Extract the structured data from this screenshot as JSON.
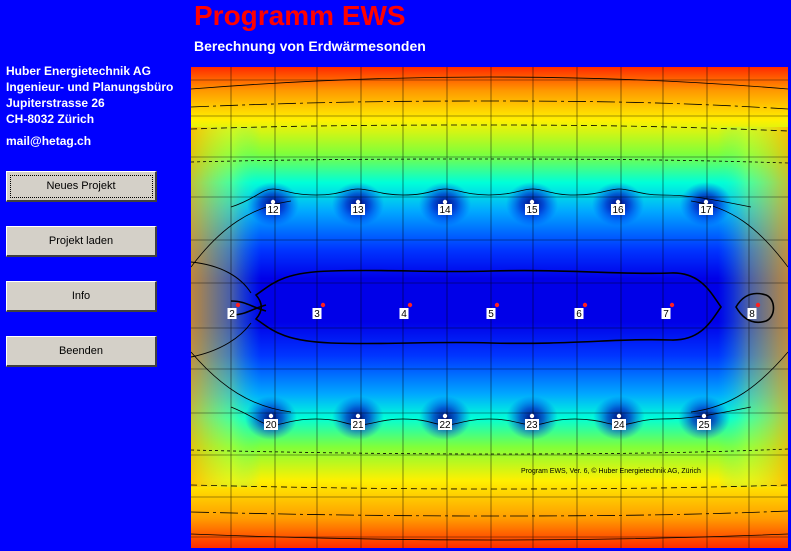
{
  "header": {
    "title": "Programm EWS",
    "subtitle": "Berechnung von Erdwärmesonden"
  },
  "company": {
    "name": "Huber Energietechnik AG",
    "department": "Ingenieur- und Planungsbüro",
    "street": "Jupiterstrasse 26",
    "city": "CH-8032 Zürich",
    "email": "mail@hetag.ch"
  },
  "menu": {
    "new_project": "Neues Projekt",
    "load_project": "Projekt laden",
    "info": "Info",
    "exit": "Beenden"
  },
  "plot": {
    "credit": "Program EWS, Ver. 6,  © Huber Energietechnik AG, Zürich",
    "probes_top": [
      "12",
      "13",
      "14",
      "15",
      "16",
      "17"
    ],
    "probes_middle": [
      "2",
      "3",
      "4",
      "5",
      "6",
      "7",
      "8"
    ],
    "probes_bottom": [
      "20",
      "21",
      "22",
      "23",
      "24",
      "25"
    ]
  },
  "colors": {
    "background": "#0000ff",
    "title": "#ff0000",
    "button_face": "#d4d0c8"
  }
}
